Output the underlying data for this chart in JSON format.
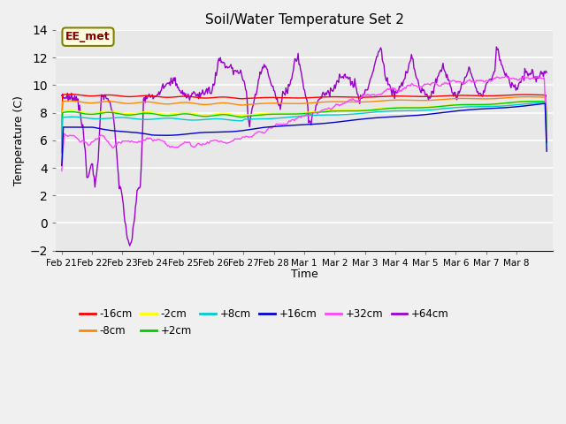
{
  "title": "Soil/Water Temperature Set 2",
  "xlabel": "Time",
  "ylabel": "Temperature (C)",
  "ylim": [
    -2,
    14
  ],
  "yticks": [
    -2,
    0,
    2,
    4,
    6,
    8,
    10,
    12,
    14
  ],
  "plot_bg": "#e8e8e8",
  "annotation_label": "EE_met",
  "legend_entries": [
    "-16cm",
    "-8cm",
    "-2cm",
    "+2cm",
    "+8cm",
    "+16cm",
    "+32cm",
    "+64cm"
  ],
  "legend_colors": [
    "#ff0000",
    "#ff8800",
    "#ffff00",
    "#00cc00",
    "#00cccc",
    "#0000cc",
    "#ff44ff",
    "#9900cc"
  ],
  "xtick_labels": [
    "Feb 21",
    "Feb 22",
    "Feb 23",
    "Feb 24",
    "Feb 25",
    "Feb 26",
    "Feb 27",
    "Feb 28",
    "Mar 1",
    "Mar 2",
    "Mar 3",
    "Mar 4",
    "Mar 5",
    "Mar 6",
    "Mar 7",
    "Mar 8"
  ],
  "n_points": 600
}
